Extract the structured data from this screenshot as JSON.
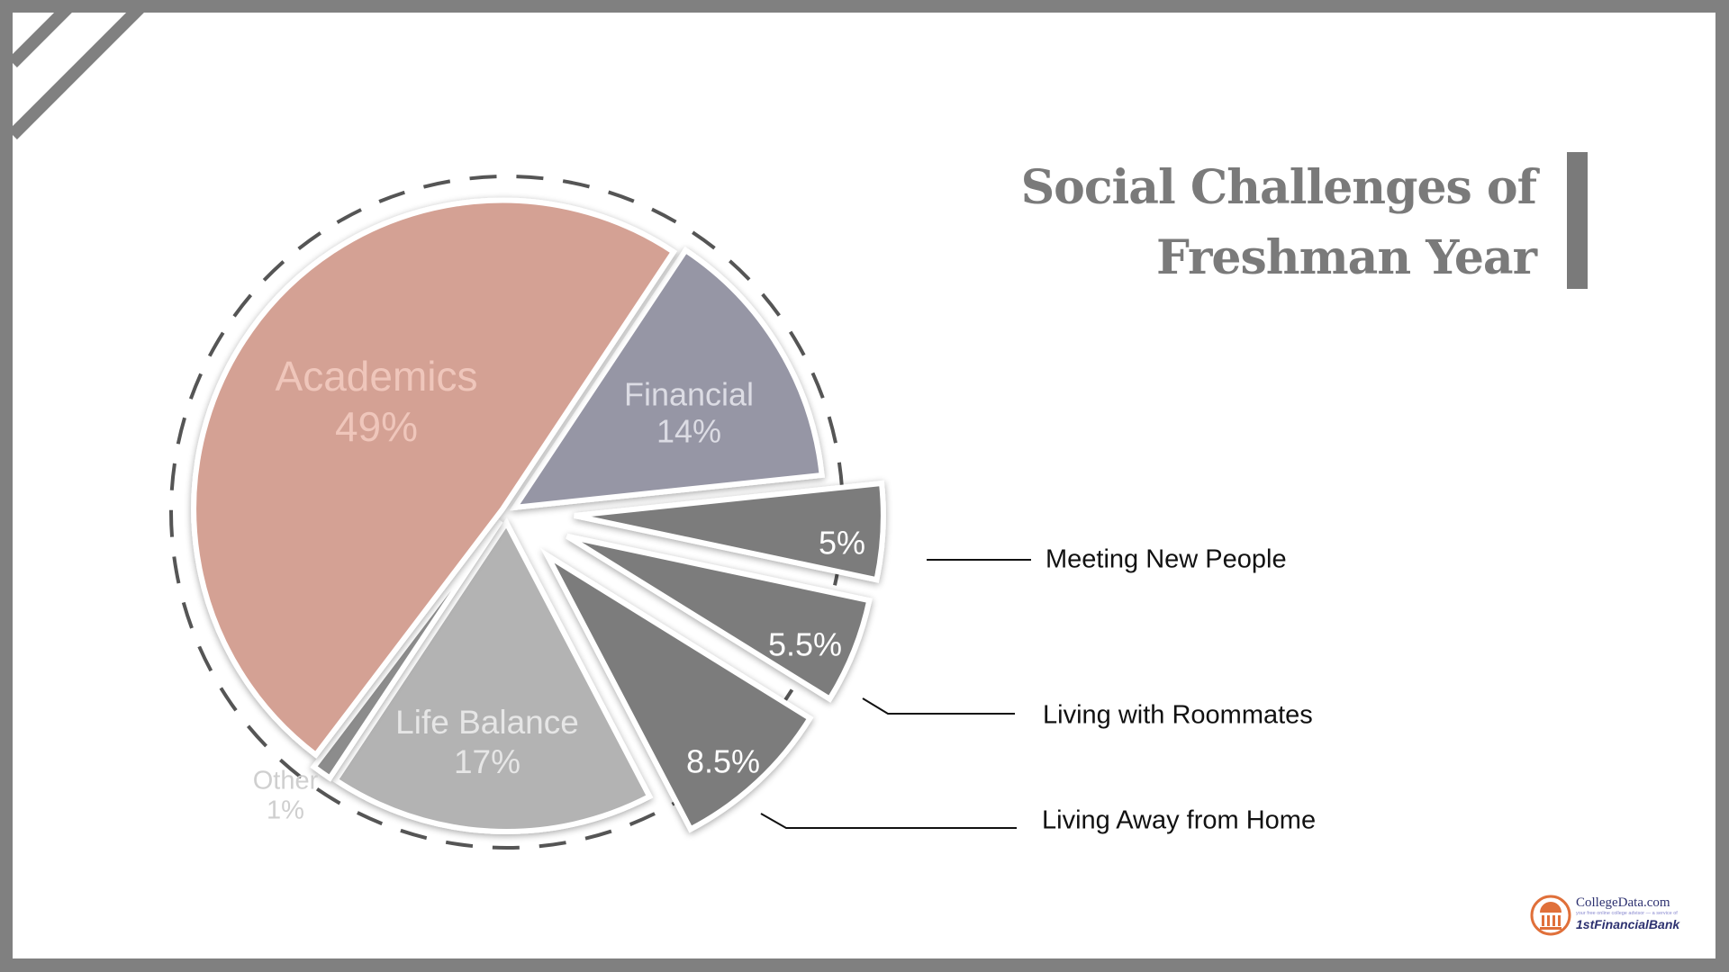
{
  "chart_data": {
    "type": "pie",
    "title": "Social Challenges of Freshman Year",
    "title_lines": [
      "Social Challenges of",
      "Freshman Year"
    ],
    "slices": [
      {
        "label": "Financial",
        "value": 14,
        "value_label": "14%",
        "color": "#9696a5",
        "exploded": false
      },
      {
        "label": "Meeting New People",
        "value": 5,
        "value_label": "5%",
        "color": "#7b7b7b",
        "exploded": true
      },
      {
        "label": "Living with Roommates",
        "value": 5.5,
        "value_label": "5.5%",
        "color": "#7b7b7b",
        "exploded": true
      },
      {
        "label": "Living Away from Home",
        "value": 8.5,
        "value_label": "8.5%",
        "color": "#7b7b7b",
        "exploded": true
      },
      {
        "label": "Life Balance",
        "value": 17,
        "value_label": "17%",
        "color": "#b3b3b3",
        "exploded": false
      },
      {
        "label": "Other",
        "value": 1,
        "value_label": "1%",
        "color": "#8c8c8c",
        "exploded": false
      },
      {
        "label": "Academics",
        "value": 49,
        "value_label": "49%",
        "color": "#d4a194",
        "exploded": false
      }
    ],
    "legend_placement": "right, with leader lines for exploded slices"
  },
  "logo": {
    "brand": "CollegeData.com",
    "tagline": "your free online college advisor — a service of",
    "sponsor": "1stFinancialBank USA"
  },
  "colors": {
    "border": "#808080",
    "title": "#7a7a7a",
    "dashed_ring": "#555555"
  }
}
